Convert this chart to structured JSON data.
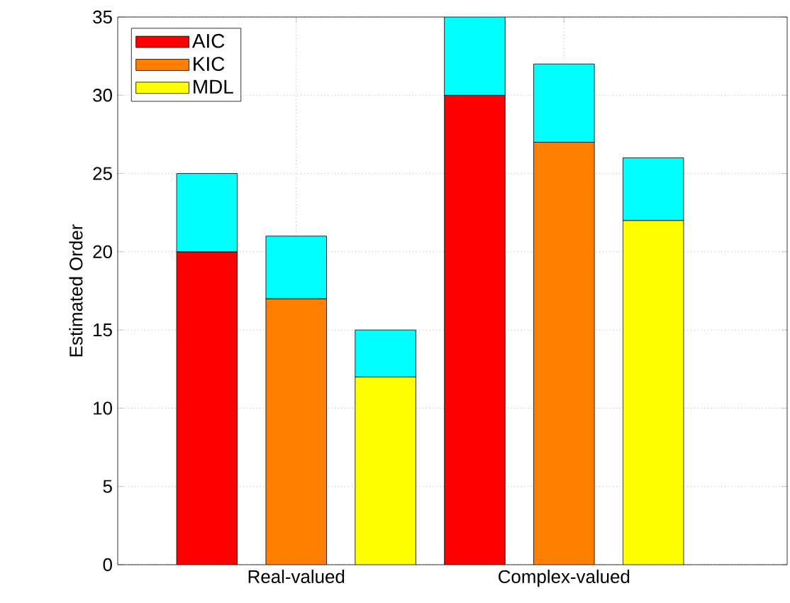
{
  "chart_data": {
    "type": "bar",
    "stacked": true,
    "ylabel": "Estimated Order",
    "categories": [
      null,
      "Real-valued",
      null,
      null,
      "Complex-valued",
      null
    ],
    "series": [
      {
        "name": "AIC",
        "color": "#ff0000",
        "values": [
          20,
          null,
          null,
          30,
          null,
          null
        ]
      },
      {
        "name": "KIC",
        "color": "#ff8000",
        "values": [
          null,
          17,
          null,
          null,
          27,
          null
        ]
      },
      {
        "name": "MDL",
        "color": "#ffff00",
        "values": [
          null,
          null,
          12,
          null,
          null,
          22
        ]
      },
      {
        "color": "#00ffff",
        "values": [
          5,
          4,
          3,
          5,
          5,
          4
        ]
      }
    ],
    "ylim": [
      0,
      35
    ],
    "yticks": [
      0,
      5,
      10,
      15,
      20,
      25,
      30,
      35
    ],
    "grid": true,
    "legend": "top left"
  }
}
